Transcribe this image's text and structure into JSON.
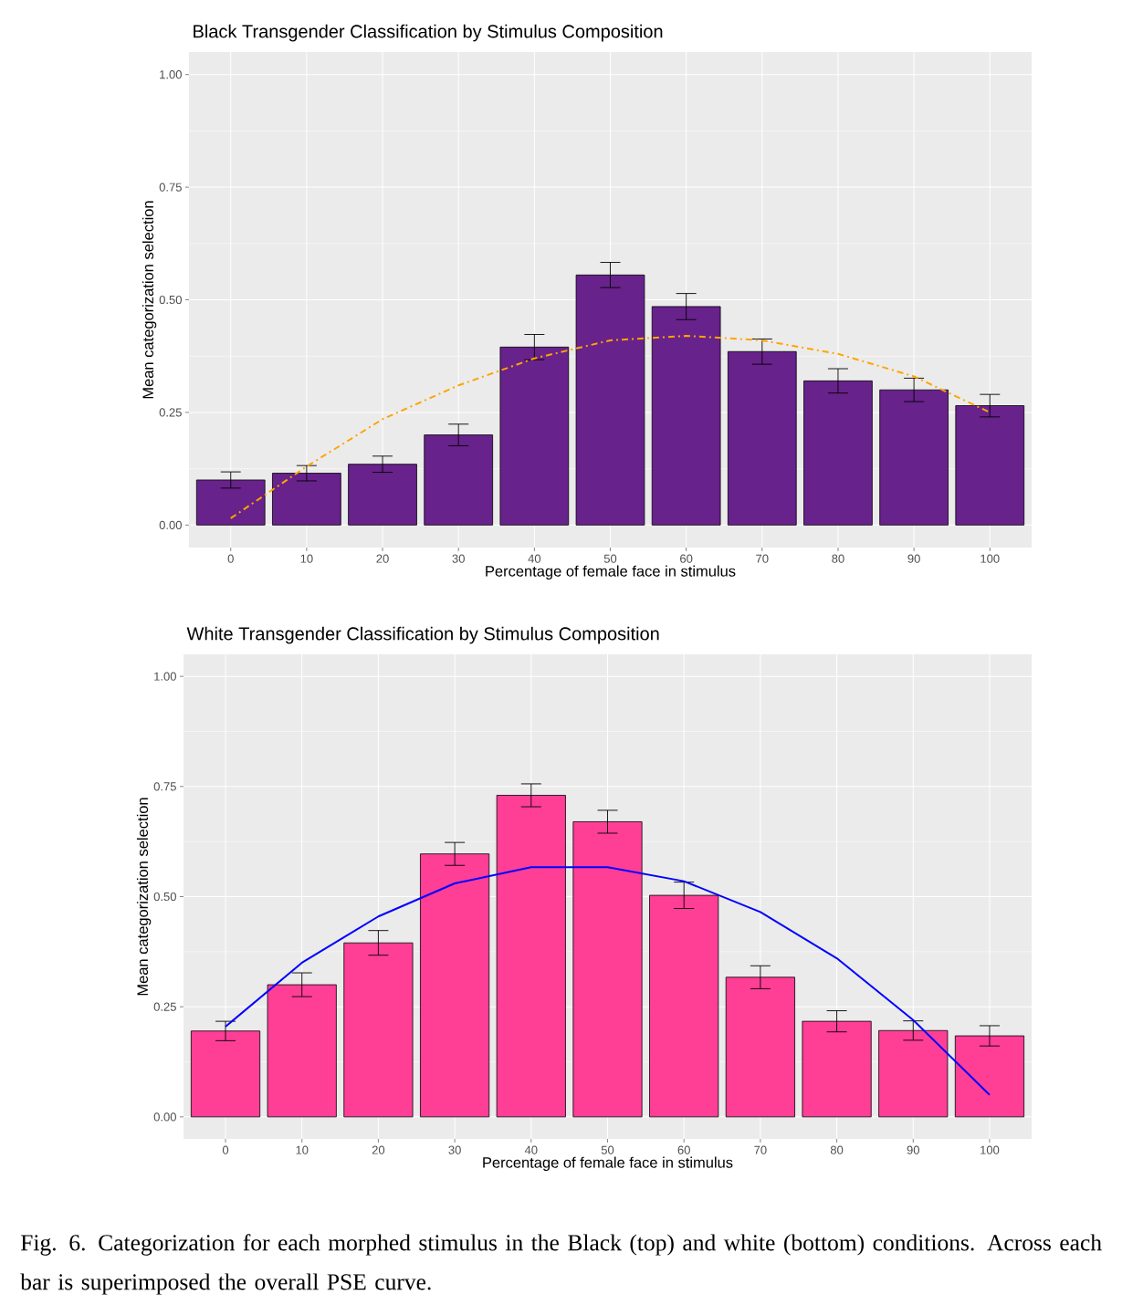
{
  "chart_data": [
    {
      "type": "bar",
      "title": "Black Transgender Classification by Stimulus Composition",
      "xlabel": "Percentage of female face in stimulus",
      "ylabel": "Mean categorization selection",
      "categories": [
        "0",
        "10",
        "20",
        "30",
        "40",
        "50",
        "60",
        "70",
        "80",
        "90",
        "100"
      ],
      "ylim": [
        -0.05,
        1.05
      ],
      "yticks": [
        {
          "value": 0,
          "label": "0.00"
        },
        {
          "value": 0.25,
          "label": "0.25"
        },
        {
          "value": 0.5,
          "label": "0.50"
        },
        {
          "value": 0.75,
          "label": "0.75"
        },
        {
          "value": 1,
          "label": "1.00"
        }
      ],
      "grid": true,
      "series": [
        {
          "color": "#68228b",
          "values": [
            0.1,
            0.115,
            0.135,
            0.2,
            0.395,
            0.555,
            0.485,
            0.385,
            0.32,
            0.3,
            0.265
          ],
          "errors": [
            0.018,
            0.017,
            0.018,
            0.024,
            0.028,
            0.028,
            0.029,
            0.028,
            0.027,
            0.026,
            0.025
          ]
        },
        {
          "type": "line",
          "color": "#ffa500",
          "line_style": "dashed",
          "values": [
            0.015,
            0.13,
            0.235,
            0.31,
            0.37,
            0.41,
            0.42,
            0.41,
            0.38,
            0.33,
            0.25
          ]
        }
      ]
    },
    {
      "type": "bar",
      "title": "White Transgender Classification by Stimulus Composition",
      "xlabel": "Percentage of female face in stimulus",
      "ylabel": "Mean categorization selection",
      "categories": [
        "0",
        "10",
        "20",
        "30",
        "40",
        "50",
        "60",
        "70",
        "80",
        "90",
        "100"
      ],
      "ylim": [
        -0.05,
        1.05
      ],
      "yticks": [
        {
          "value": 0,
          "label": "0.00"
        },
        {
          "value": 0.25,
          "label": "0.25"
        },
        {
          "value": 0.5,
          "label": "0.50"
        },
        {
          "value": 0.75,
          "label": "0.75"
        },
        {
          "value": 1,
          "label": "1.00"
        }
      ],
      "grid": true,
      "annotations": [
        "Fig. 6. Categorization for each morphed stimulus in the Black (top) and white (bottom) conditions.  Across each bar is superimposed the overall PSE curve."
      ],
      "series": [
        {
          "color": "#ff3e96",
          "values": [
            0.195,
            0.3,
            0.395,
            0.597,
            0.73,
            0.67,
            0.503,
            0.317,
            0.217,
            0.196,
            0.184
          ],
          "errors": [
            0.022,
            0.027,
            0.028,
            0.026,
            0.026,
            0.026,
            0.03,
            0.026,
            0.024,
            0.022,
            0.023
          ]
        },
        {
          "type": "line",
          "color": "#0000ff",
          "line_style": "solid",
          "values": [
            0.205,
            0.35,
            0.455,
            0.53,
            0.567,
            0.567,
            0.535,
            0.465,
            0.36,
            0.22,
            0.05
          ]
        }
      ]
    }
  ]
}
